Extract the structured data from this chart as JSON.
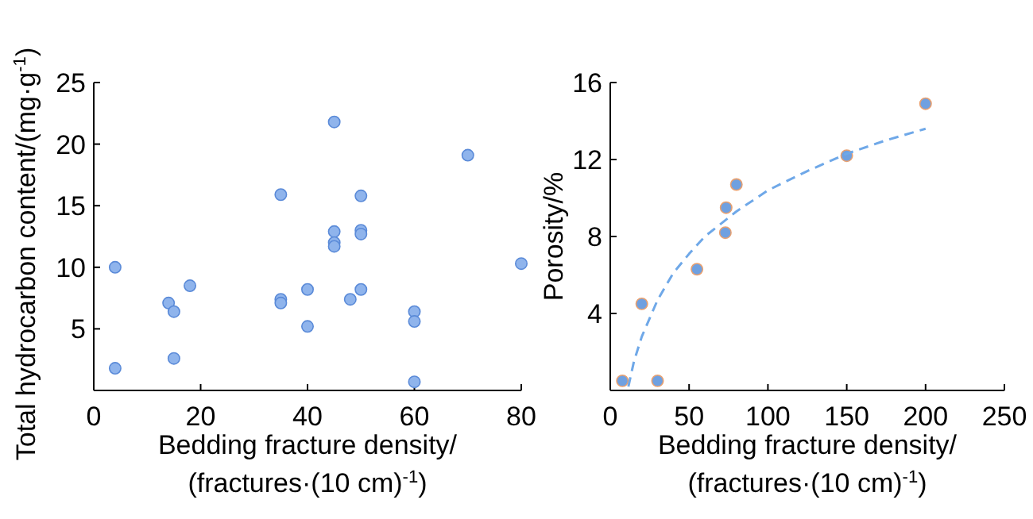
{
  "chart_data": [
    {
      "type": "scatter",
      "xlabel": "Bedding fracture density/\n(fractures·(10 cm)$^{-1}$)",
      "ylabel": "Total hydrocarbon content/(mg·g$^{-1}$)",
      "xlim": [
        0,
        80
      ],
      "xticks": [
        0,
        20,
        40,
        60,
        80
      ],
      "ylim": [
        0,
        25
      ],
      "yticks": [
        5,
        10,
        15,
        20,
        25
      ],
      "grid": false,
      "marker": "circle",
      "series": [
        {
          "color": "#8fb4ec",
          "x": [
            4,
            4,
            14,
            15,
            15,
            18,
            35,
            35,
            35,
            40,
            40,
            45,
            45,
            45,
            45,
            48,
            50,
            50,
            50,
            50,
            60,
            60,
            60,
            70,
            80
          ],
          "values": [
            1.8,
            10.0,
            7.1,
            6.4,
            2.6,
            8.5,
            15.9,
            7.4,
            7.1,
            8.2,
            5.2,
            21.8,
            12.9,
            12.0,
            11.7,
            7.4,
            15.8,
            13.0,
            12.7,
            8.2,
            6.4,
            5.6,
            0.7,
            19.1,
            10.3
          ]
        }
      ]
    },
    {
      "type": "scatter",
      "xlabel": "Bedding fracture density/\n(fractures·(10 cm)$^{-1}$)",
      "ylabel": "Porosity/%",
      "xlim": [
        0,
        250
      ],
      "xticks": [
        0,
        50,
        100,
        150,
        200,
        250
      ],
      "ylim": [
        0,
        16
      ],
      "yticks": [
        4,
        8,
        12,
        16
      ],
      "grid": false,
      "marker": "circle",
      "series": [
        {
          "color": "#6fa0e0",
          "x": [
            7.7,
            20,
            30,
            55,
            73,
            73.5,
            80,
            150,
            200
          ],
          "values": [
            0.5,
            4.5,
            0.5,
            6.3,
            8.2,
            9.5,
            10.7,
            12.2,
            14.9
          ]
        },
        {
          "type": "line",
          "color": "#6fa8e8",
          "line_style": "dashed",
          "marker": "none",
          "x": [
            11.5,
            15,
            20,
            30,
            40,
            50,
            60,
            80,
            100,
            125,
            150,
            175,
            200
          ],
          "values": [
            0.2,
            1.5,
            2.8,
            4.7,
            6.1,
            7.1,
            8.0,
            9.3,
            10.4,
            11.4,
            12.3,
            13.0,
            13.6
          ]
        }
      ]
    }
  ]
}
